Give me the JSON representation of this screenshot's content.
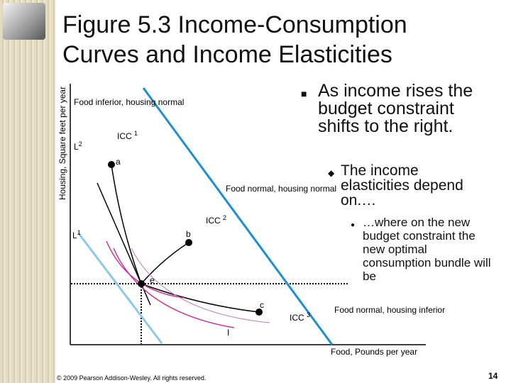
{
  "header": {
    "title_lines": [
      "Figure 5.3 Income-Consumption",
      "Curves and Income Elasticities"
    ]
  },
  "figure": {
    "y_axis_label": "Housing, Square feet per year",
    "x_axis_label": "Food, Pounds per year",
    "regions": [
      "Food inferior, housing normal",
      "Food normal, housing normal",
      "Food normal, housing inferior"
    ],
    "budget_lines": [
      {
        "text": "L",
        "sup": "2"
      },
      {
        "text": "L",
        "sup": "1"
      }
    ],
    "curves": [
      {
        "text": "ICC",
        "sup": "1"
      },
      {
        "text": "ICC",
        "sup": "2"
      },
      {
        "text": "ICC",
        "sup": "3"
      }
    ],
    "points": [
      "a",
      "b",
      "c",
      "e"
    ],
    "indifference_label": "I"
  },
  "bullets": [
    "As income rises the budget constraint shifts to the right.",
    "The income elasticities depend on.…",
    "…where on the new budget constraint the new optimal consumption bundle will be"
  ],
  "footer": {
    "copyright": "© 2009 Pearson Addison-Wesley. All rights reserved.",
    "page": "14"
  }
}
